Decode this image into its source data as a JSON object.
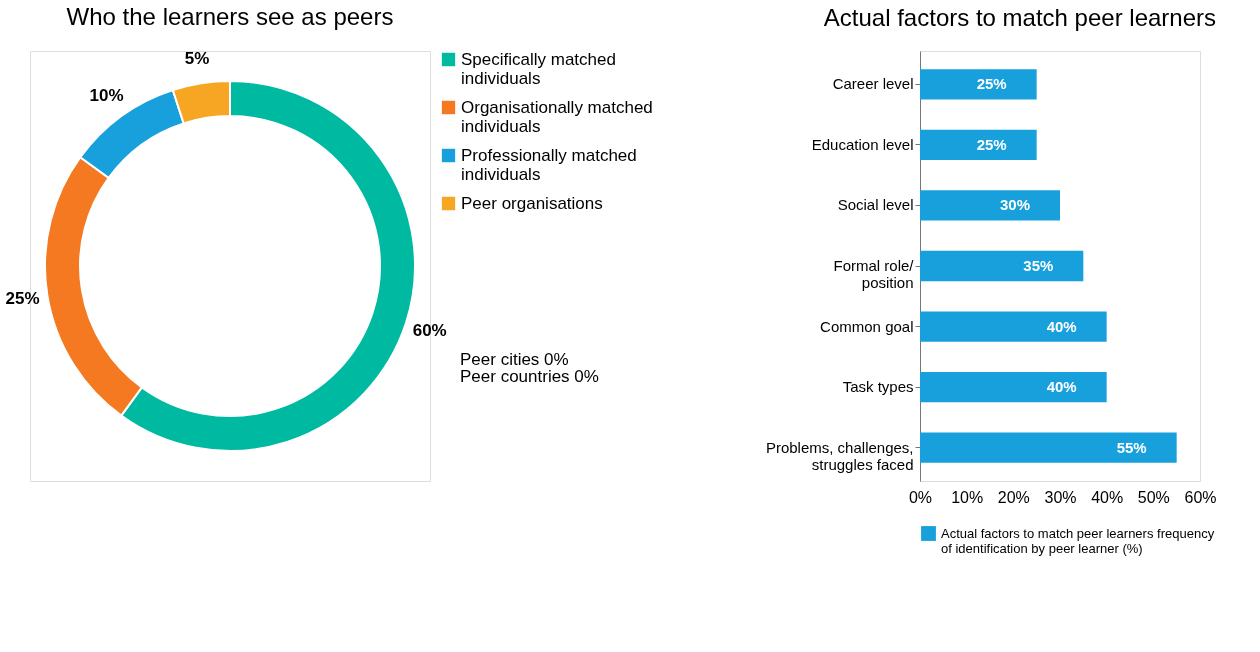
{
  "chart_data": [
    {
      "type": "donut",
      "title": "Who the learners see as peers",
      "categories": [
        "Specifically matched\nindividuals",
        "Organisationally matched\nindividuals",
        "Professionally matched\nindividuals",
        "Peer organisations"
      ],
      "values": [
        60,
        25,
        10,
        5
      ],
      "colors": [
        "#00b9a1",
        "#f47920",
        "#17a0db",
        "#f6a623"
      ],
      "value_labels": [
        "60%",
        "25%",
        "10%",
        "5%"
      ],
      "legend": "right",
      "annotations": [
        "Peer cities 0%",
        "Peer countries 0%"
      ]
    },
    {
      "type": "bar",
      "orientation": "horizontal",
      "title": "Actual factors to match peer learners",
      "categories": [
        "Career level",
        "Education level",
        "Social level",
        "Formal role/\nposition",
        "Common goal",
        "Task types",
        "Problems, challenges,\nstruggles faced"
      ],
      "series": [
        {
          "name": "Actual factors to match peer learners frequency\nof identification by peer learner (%)",
          "color": "#17a0db",
          "values": [
            25,
            25,
            30,
            35,
            40,
            40,
            55
          ],
          "value_labels": [
            "25%",
            "25%",
            "30%",
            "35%",
            "40%",
            "40%",
            "55%"
          ]
        }
      ],
      "xlim": [
        0,
        60
      ],
      "xticks": [
        {
          "value": 0,
          "label": "0%"
        },
        {
          "value": 10,
          "label": "10%"
        },
        {
          "value": 20,
          "label": "20%"
        },
        {
          "value": 30,
          "label": "30%"
        },
        {
          "value": 40,
          "label": "40%"
        },
        {
          "value": 50,
          "label": "50%"
        },
        {
          "value": 60,
          "label": "60%"
        }
      ],
      "grid": false,
      "legend": "bottom"
    }
  ]
}
